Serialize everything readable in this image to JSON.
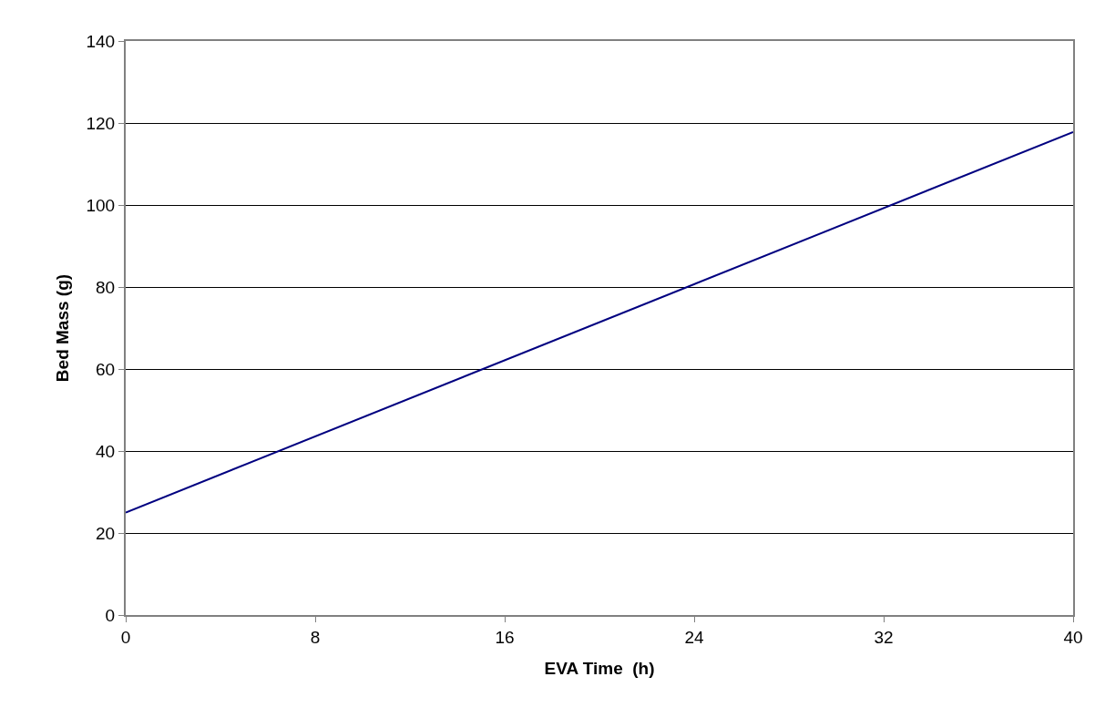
{
  "chart_data": {
    "type": "line",
    "xlabel": "EVA Time  (h)",
    "ylabel": "Bed Mass (g)",
    "x": [
      0,
      40
    ],
    "series": [
      {
        "color": "#000080",
        "values": [
          25,
          117.8
        ]
      }
    ],
    "xlim": [
      0,
      40
    ],
    "xticks": [
      0,
      8,
      16,
      24,
      32,
      40
    ],
    "ylim": [
      0,
      140
    ],
    "yticks": [
      0,
      20,
      40,
      60,
      80,
      100,
      120,
      140
    ],
    "grid": "y",
    "legend": false,
    "marker": "none",
    "line_style": "solid"
  }
}
